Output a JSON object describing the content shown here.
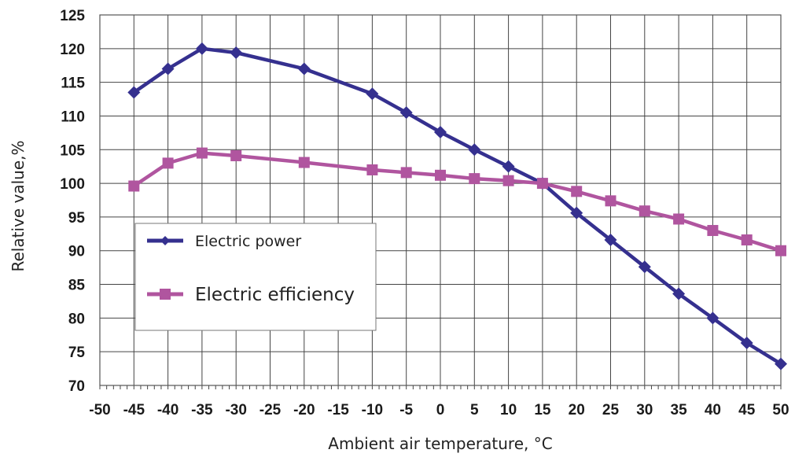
{
  "chart_data": {
    "type": "line",
    "title": "",
    "xlabel": "Ambient air temperature, °C",
    "ylabel": "Relative value,%",
    "xlim": [
      -50,
      50
    ],
    "ylim": [
      70,
      125
    ],
    "x_ticks": [
      -50,
      -45,
      -40,
      -35,
      -30,
      -25,
      -20,
      -15,
      -10,
      -5,
      0,
      5,
      10,
      15,
      20,
      25,
      30,
      35,
      40,
      45,
      50
    ],
    "y_ticks": [
      70,
      75,
      80,
      85,
      90,
      95,
      100,
      105,
      110,
      115,
      120,
      125
    ],
    "grid": true,
    "legend_position": "bottom-left",
    "series": [
      {
        "name": "Electric power",
        "color": "#35308f",
        "marker": "diamond",
        "x": [
          -45,
          -40,
          -35,
          -30,
          -20,
          -10,
          -5,
          0,
          5,
          10,
          15,
          20,
          25,
          30,
          35,
          40,
          45,
          50
        ],
        "values": [
          113.5,
          117,
          120,
          119.4,
          117,
          113.3,
          110.5,
          107.6,
          105,
          102.5,
          100,
          95.6,
          91.6,
          87.6,
          83.6,
          80,
          76.3,
          73.2
        ]
      },
      {
        "name": "Electric efficiency",
        "color": "#b0559f",
        "marker": "square",
        "x": [
          -45,
          -40,
          -35,
          -30,
          -20,
          -10,
          -5,
          0,
          5,
          10,
          15,
          20,
          25,
          30,
          35,
          40,
          45,
          50
        ],
        "values": [
          99.6,
          103,
          104.5,
          104.1,
          103.1,
          102,
          101.6,
          101.2,
          100.7,
          100.4,
          100,
          98.8,
          97.4,
          95.9,
          94.7,
          93,
          91.6,
          90
        ]
      }
    ]
  }
}
